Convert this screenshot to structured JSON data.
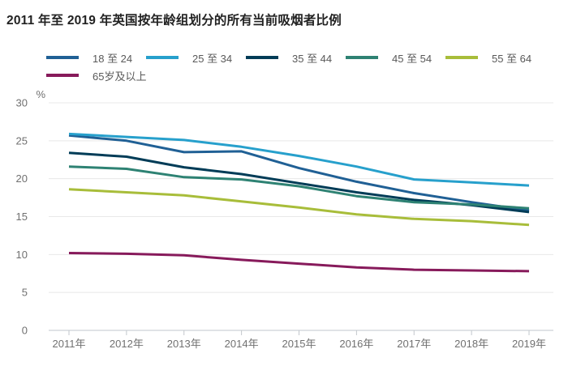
{
  "title": "2011 年至 2019 年英国按年龄组划分的所有当前吸烟者比例",
  "colors": {
    "background": "#ffffff",
    "title_text": "#222222",
    "axis_text": "#707070",
    "legend_text": "#595959",
    "grid_line": "#e8e8e8",
    "axis_line": "#c2c7cc"
  },
  "chart_data": {
    "type": "line",
    "title": "2011 年至 2019 年英国按年龄组划分的所有当前吸烟者比例",
    "xlabel": "",
    "ylabel": "%",
    "unit_label": "%",
    "ylim": [
      0,
      30
    ],
    "ytick_interval": 5,
    "yticks": [
      0,
      5,
      10,
      15,
      20,
      25,
      30
    ],
    "grid": "horizontal",
    "legend_position": "top-left",
    "categories": [
      "2011年",
      "2012年",
      "2013年",
      "2014年",
      "2015年",
      "2016年",
      "2017年",
      "2018年",
      "2019年"
    ],
    "series": [
      {
        "name": "18 至 24",
        "color": "#206095",
        "values": [
          25.7,
          25.0,
          23.5,
          23.6,
          21.4,
          19.6,
          18.1,
          16.9,
          15.8
        ]
      },
      {
        "name": "25 至 34",
        "color": "#27A0CC",
        "values": [
          25.9,
          25.5,
          25.1,
          24.2,
          23.0,
          21.6,
          19.9,
          19.5,
          19.1
        ]
      },
      {
        "name": "35 至 44",
        "color": "#003C57",
        "values": [
          23.4,
          22.9,
          21.5,
          20.6,
          19.4,
          18.2,
          17.2,
          16.5,
          15.6
        ]
      },
      {
        "name": "45 至 54",
        "color": "#2E8273",
        "values": [
          21.6,
          21.3,
          20.2,
          19.9,
          19.0,
          17.7,
          16.9,
          16.6,
          16.1
        ]
      },
      {
        "name": "55 至 64",
        "color": "#A8BD3A",
        "values": [
          18.6,
          18.2,
          17.8,
          17.0,
          16.2,
          15.3,
          14.7,
          14.4,
          13.9
        ]
      },
      {
        "name": "65岁及以上",
        "color": "#871A5B",
        "values": [
          10.2,
          10.1,
          9.9,
          9.3,
          8.8,
          8.3,
          8.0,
          7.9,
          7.8
        ]
      }
    ]
  }
}
